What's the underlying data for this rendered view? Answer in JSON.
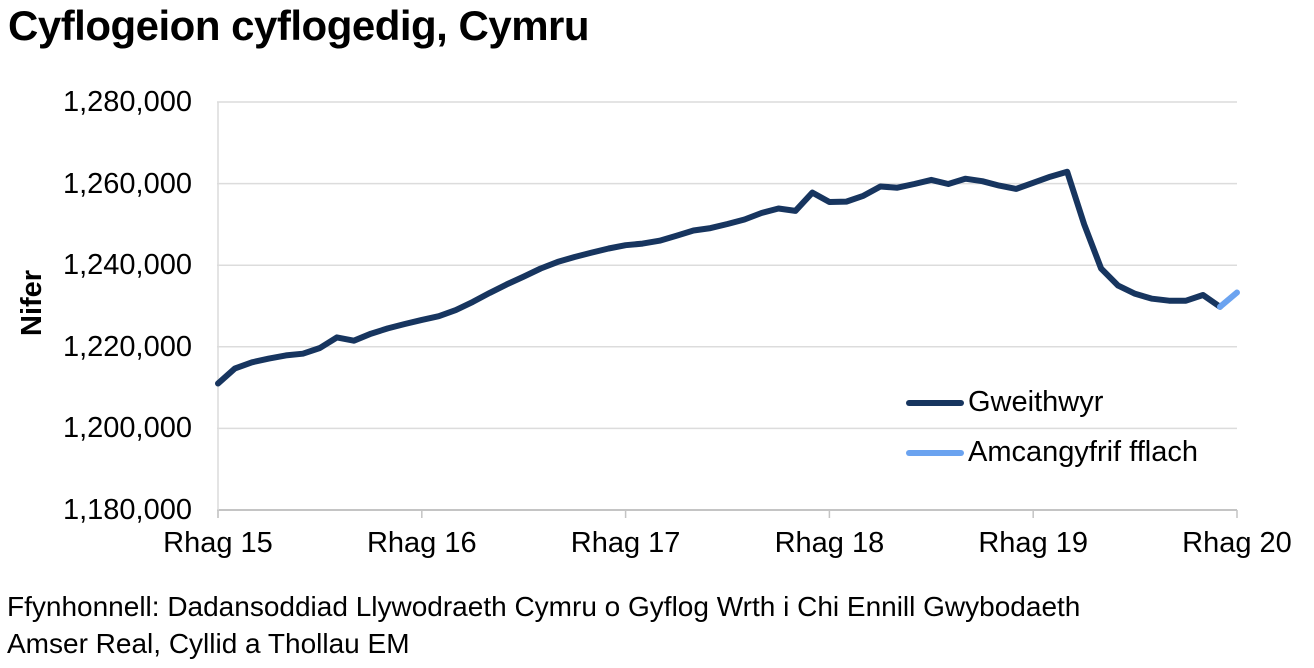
{
  "title": "Cyflogeion cyflogedig, Cymru",
  "source": {
    "line1": "Ffynhonnell: Dadansoddiad Llywodraeth Cymru o Gyflog Wrth i Chi Ennill Gwybodaeth",
    "line2": "Amser Real, Cyllid a Thollau EM"
  },
  "legend": {
    "items": [
      {
        "label": "Gweithwyr",
        "color": "#17355f"
      },
      {
        "label": "Amcangyfrif fflach",
        "color": "#6ba3f0"
      }
    ]
  },
  "colors": {
    "gridline": "#dcdcdc",
    "axis": "#c4c4c4",
    "text": "#000000",
    "background": "#ffffff"
  },
  "chart_data": {
    "type": "line",
    "title": "Cyflogeion cyflogedig, Cymru",
    "ylabel": "Nifer",
    "xlabel": "",
    "ylim": [
      1180000,
      1280000
    ],
    "y_tick_step": 20000,
    "y_tick_labels": [
      "1,280,000",
      "1,260,000",
      "1,240,000",
      "1,220,000",
      "1,200,000",
      "1,180,000"
    ],
    "x_tick_labels": [
      "Rhag 15",
      "Rhag 16",
      "Rhag 17",
      "Rhag 18",
      "Rhag 19",
      "Rhag 20"
    ],
    "x_tick_month_indices": [
      0,
      12,
      24,
      36,
      48,
      60
    ],
    "x_total_months": 60,
    "grid": "horizontal-only",
    "legend_position": "inside-lower-right",
    "series": [
      {
        "name": "Gweithwyr",
        "color": "#17355f",
        "month_indices": [
          0,
          1,
          2,
          3,
          4,
          5,
          6,
          7,
          8,
          9,
          10,
          11,
          12,
          13,
          14,
          15,
          16,
          17,
          18,
          19,
          20,
          21,
          22,
          23,
          24,
          25,
          26,
          27,
          28,
          29,
          30,
          31,
          32,
          33,
          34,
          35,
          36,
          37,
          38,
          39,
          40,
          41,
          42,
          43,
          44,
          45,
          46,
          47,
          48,
          49,
          50,
          51,
          52,
          53,
          54,
          55,
          56,
          57,
          58,
          59
        ],
        "values": [
          1211000,
          1214700,
          1216200,
          1217100,
          1217900,
          1218300,
          1219700,
          1222300,
          1221500,
          1223200,
          1224500,
          1225600,
          1226600,
          1227500,
          1229000,
          1231000,
          1233200,
          1235300,
          1237200,
          1239200,
          1240800,
          1242000,
          1243100,
          1244100,
          1244900,
          1245300,
          1246000,
          1247200,
          1248500,
          1249100,
          1250100,
          1251200,
          1252800,
          1253900,
          1253300,
          1257800,
          1255500,
          1255600,
          1257000,
          1259300,
          1259000,
          1259900,
          1260900,
          1259900,
          1261200,
          1260600,
          1259500,
          1258700,
          1260200,
          1261700,
          1262900,
          1250000,
          1239200,
          1235000,
          1233000,
          1231800,
          1231300,
          1231300,
          1232700,
          1229800
        ]
      },
      {
        "name": "Amcangyfrif fflach",
        "color": "#6ba3f0",
        "month_indices": [
          59,
          60
        ],
        "values": [
          1229800,
          1233300
        ]
      }
    ]
  }
}
